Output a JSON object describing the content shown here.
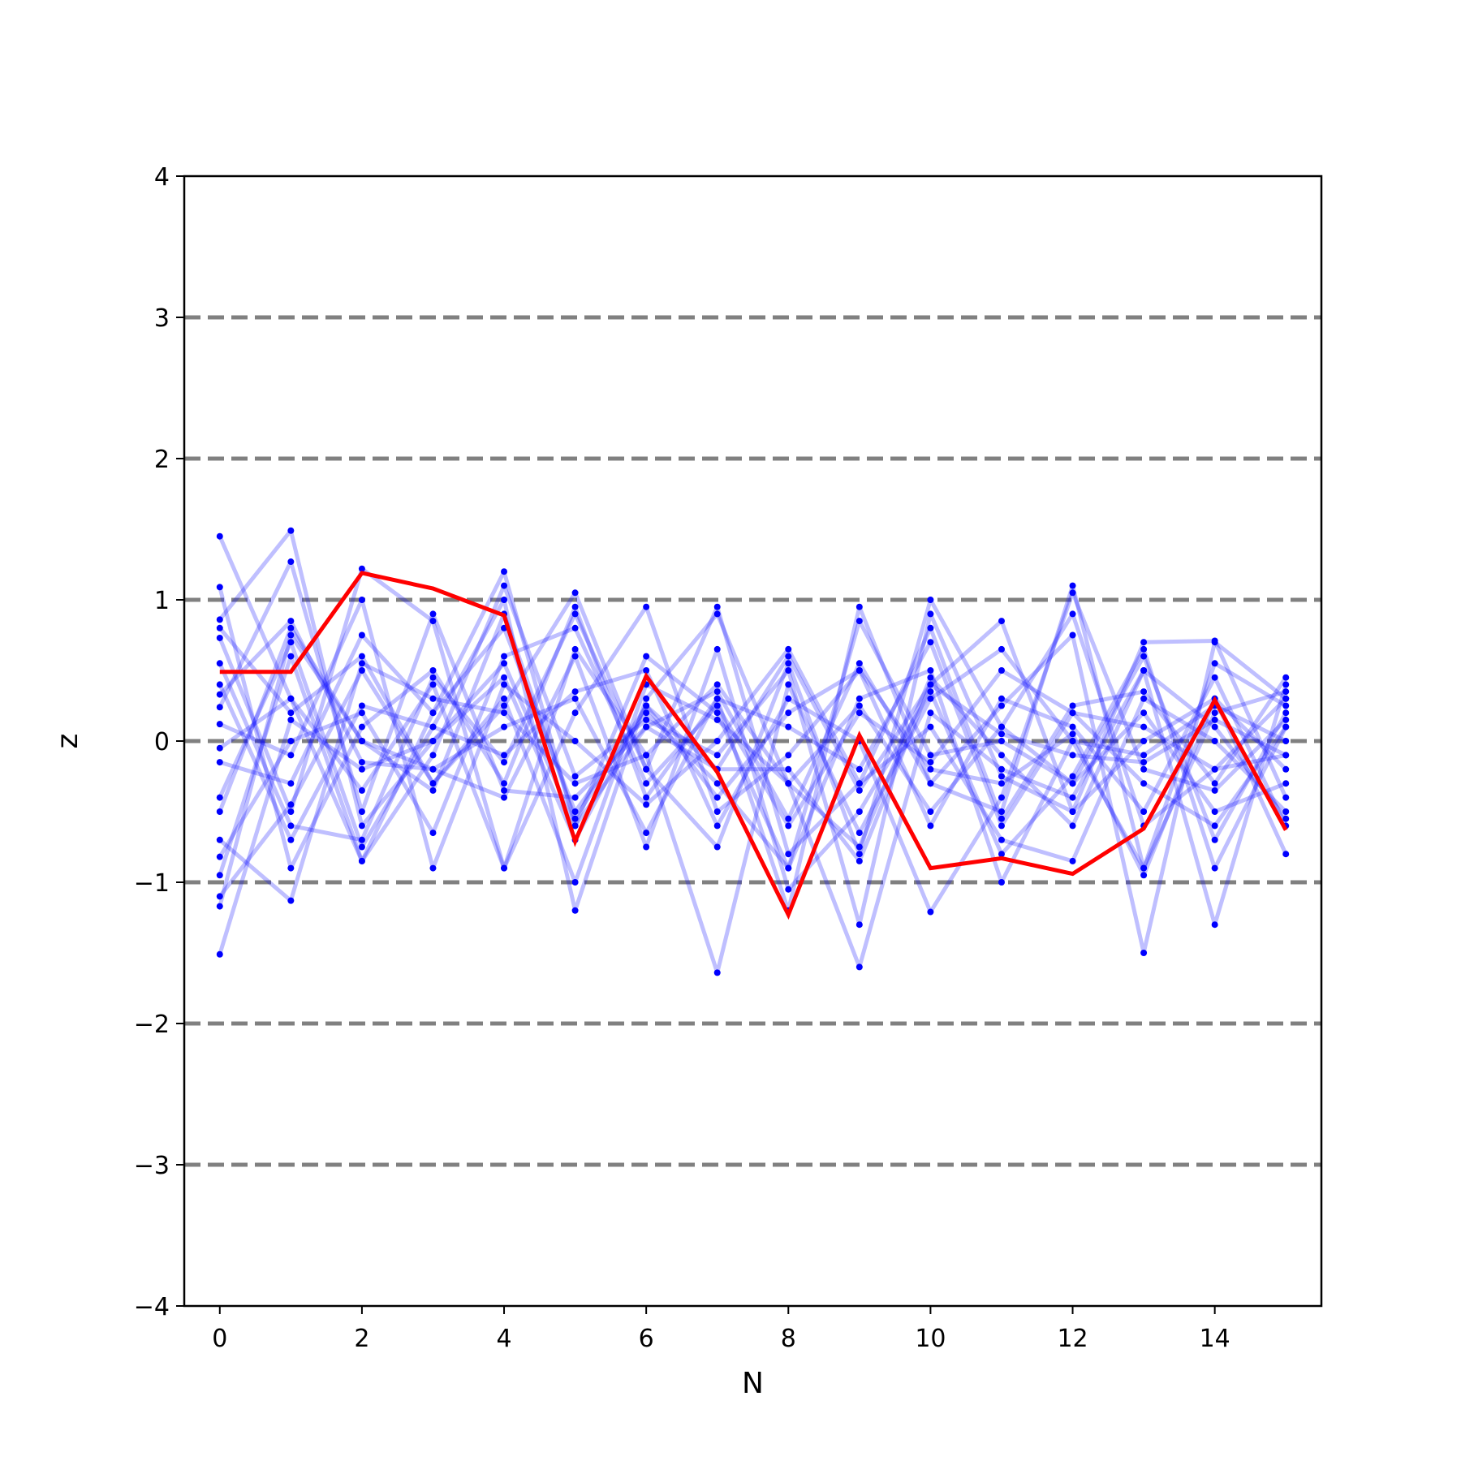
{
  "chart_data": {
    "type": "line",
    "title": "",
    "xlabel": "N",
    "ylabel": "z",
    "xlim": [
      -0.5,
      15.5
    ],
    "ylim": [
      -4,
      4
    ],
    "x_ticks": [
      0,
      2,
      4,
      6,
      8,
      10,
      12,
      14
    ],
    "x_tick_labels": [
      "0",
      "2",
      "4",
      "6",
      "8",
      "10",
      "12",
      "14"
    ],
    "y_ticks": [
      -4,
      -3,
      -2,
      -1,
      0,
      1,
      2,
      3,
      4
    ],
    "y_tick_labels": [
      "−4",
      "−3",
      "−2",
      "−1",
      "0",
      "1",
      "2",
      "3",
      "4"
    ],
    "reference_lines": [
      -3,
      -2,
      -1,
      0,
      1,
      2,
      3
    ],
    "reference_line_color": "#808080",
    "series_color": "#0000ff",
    "highlight_color": "#ff0000",
    "x": [
      0,
      1,
      2,
      3,
      4,
      5,
      6,
      7,
      8,
      9,
      10,
      11,
      12,
      13,
      14,
      15
    ],
    "highlight": [
      0.49,
      0.49,
      1.19,
      1.08,
      0.89,
      -0.71,
      0.46,
      -0.22,
      -1.23,
      0.04,
      -0.9,
      -0.83,
      -0.94,
      -0.62,
      0.29,
      -0.63
    ],
    "series": [
      {
        "values": [
          1.45,
          0.3,
          -0.85,
          0.2,
          1.2,
          -0.6,
          0.1,
          -0.2,
          0.6,
          -0.35,
          0.4,
          0.85,
          -0.5,
          0.7,
          0.71,
          -0.4
        ]
      },
      {
        "values": [
          1.09,
          -0.9,
          0.1,
          0.5,
          -0.3,
          0.95,
          -0.4,
          0.3,
          -1.2,
          0.95,
          -0.3,
          -0.5,
          1.1,
          -0.9,
          0.2,
          0.35
        ]
      },
      {
        "values": [
          0.86,
          1.49,
          -0.6,
          0.0,
          0.55,
          -0.6,
          0.6,
          0.2,
          -0.9,
          0.3,
          0.5,
          -1.0,
          0.0,
          -0.1,
          0.25,
          0.0
        ]
      },
      {
        "values": [
          0.8,
          0.2,
          0.6,
          -0.3,
          0.25,
          1.05,
          -0.2,
          -0.75,
          0.55,
          -0.8,
          1.0,
          0.1,
          -0.3,
          0.6,
          -0.7,
          0.2
        ]
      },
      {
        "values": [
          0.73,
          -0.5,
          1.22,
          0.85,
          -0.9,
          0.2,
          0.95,
          -0.5,
          -0.1,
          0.5,
          -0.6,
          0.3,
          0.1,
          -0.5,
          0.45,
          -0.6
        ]
      },
      {
        "values": [
          0.4,
          -0.7,
          0.25,
          0.1,
          1.0,
          -1.2,
          0.3,
          0.9,
          -0.3,
          -1.6,
          0.2,
          -0.2,
          -0.4,
          0.5,
          -1.3,
          0.4
        ]
      },
      {
        "values": [
          0.33,
          0.85,
          -0.15,
          -0.2,
          0.1,
          0.3,
          -0.65,
          0.3,
          0.1,
          -0.2,
          0.7,
          -0.6,
          0.2,
          0.1,
          -0.2,
          -0.1
        ]
      },
      {
        "values": [
          0.24,
          1.27,
          -0.5,
          0.9,
          -0.35,
          -0.4,
          0.1,
          0.35,
          -0.55,
          0.55,
          -0.3,
          0.25,
          0.75,
          -1.5,
          0.7,
          0.3
        ]
      },
      {
        "values": [
          0.12,
          -0.1,
          1.0,
          -0.9,
          0.4,
          0.0,
          -0.45,
          0.0,
          0.65,
          -0.3,
          0.1,
          -0.7,
          -0.85,
          0.3,
          0.0,
          -0.5
        ]
      },
      {
        "values": [
          -0.05,
          0.3,
          -0.35,
          0.4,
          -0.9,
          0.65,
          -0.1,
          -1.64,
          0.4,
          -0.65,
          0.3,
          0.65,
          0.0,
          -0.9,
          0.55,
          0.25
        ]
      },
      {
        "values": [
          -0.15,
          -0.3,
          0.75,
          0.2,
          0.8,
          -0.5,
          0.2,
          -0.3,
          -0.9,
          0.85,
          -0.1,
          0.0,
          -0.3,
          0.2,
          -0.5,
          -0.3
        ]
      },
      {
        "values": [
          -0.4,
          0.7,
          -0.75,
          0.1,
          -0.1,
          0.35,
          0.5,
          -0.6,
          0.3,
          0.0,
          -1.21,
          -0.4,
          1.05,
          -0.2,
          -0.35,
          0.15
        ]
      },
      {
        "values": [
          -0.7,
          -1.13,
          0.55,
          0.3,
          0.2,
          -0.3,
          -0.1,
          0.4,
          -0.3,
          -0.75,
          0.45,
          -0.1,
          -0.6,
          0.5,
          0.1,
          -0.55
        ]
      },
      {
        "values": [
          -0.82,
          0.0,
          0.2,
          -0.65,
          0.6,
          0.8,
          -0.3,
          0.25,
          -0.6,
          0.2,
          -0.15,
          0.5,
          0.2,
          -0.3,
          -0.6,
          0.1
        ]
      },
      {
        "values": [
          -0.95,
          0.6,
          -0.85,
          -0.1,
          1.1,
          -0.25,
          0.15,
          -0.1,
          0.5,
          -1.3,
          0.9,
          -0.25,
          -0.5,
          0.0,
          0.3,
          -0.8
        ]
      },
      {
        "values": [
          -1.1,
          -0.45,
          0.5,
          -0.3,
          0.3,
          -1.0,
          0.4,
          0.15,
          -0.3,
          0.25,
          -0.5,
          0.1,
          0.9,
          -0.6,
          -0.2,
          0.3
        ]
      },
      {
        "values": [
          -1.17,
          0.75,
          0.0,
          -0.2,
          -0.4,
          0.6,
          -0.75,
          0.65,
          -1.05,
          -0.5,
          0.35,
          -0.8,
          -0.25,
          0.65,
          -0.9,
          0.1
        ]
      },
      {
        "values": [
          -1.51,
          0.15,
          -0.2,
          0.0,
          0.45,
          -0.7,
          0.25,
          -0.4,
          0.2,
          0.5,
          -0.2,
          -0.3,
          0.05,
          -0.95,
          0.3,
          -0.2
        ]
      },
      {
        "values": [
          0.55,
          -0.6,
          -0.7,
          0.45,
          -0.15,
          0.9,
          -0.2,
          0.95,
          -0.8,
          -0.3,
          0.8,
          -0.55,
          0.25,
          0.35,
          -0.3,
          0.45
        ]
      },
      {
        "values": [
          -0.5,
          0.8,
          0.0,
          -0.35,
          0.9,
          -0.55,
          0.25,
          -0.2,
          -0.2,
          -0.85,
          0.4,
          0.05,
          -0.1,
          -0.15,
          0.15,
          -0.1
        ]
      }
    ]
  }
}
